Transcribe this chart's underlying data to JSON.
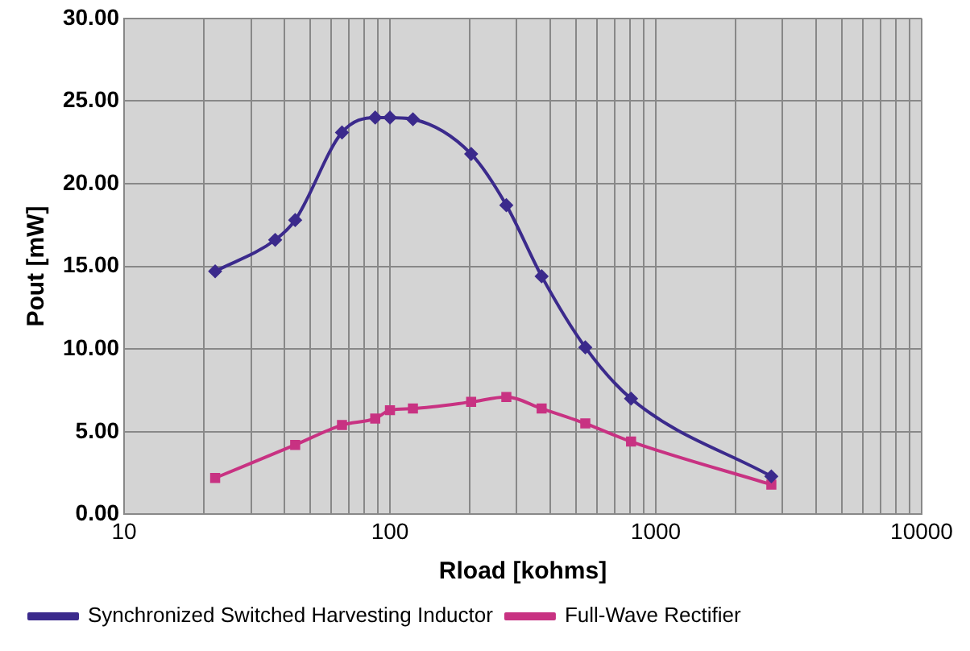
{
  "chart_data": {
    "type": "line",
    "xlabel": "Rload [kohms]",
    "ylabel": "Pout [mW]",
    "log": "x",
    "grid": true,
    "legend": "bottom",
    "line_style": "solid",
    "xlim": [
      10,
      10000
    ],
    "xticks": [
      10,
      {
        "value": 20,
        "label": null
      },
      {
        "value": 30,
        "label": null
      },
      {
        "value": 40,
        "label": null
      },
      {
        "value": 50,
        "label": null
      },
      {
        "value": 60,
        "label": null
      },
      {
        "value": 70,
        "label": null
      },
      {
        "value": 80,
        "label": null
      },
      {
        "value": 90,
        "label": null
      },
      100,
      {
        "value": 200,
        "label": null
      },
      {
        "value": 300,
        "label": null
      },
      {
        "value": 400,
        "label": null
      },
      {
        "value": 500,
        "label": null
      },
      {
        "value": 600,
        "label": null
      },
      {
        "value": 700,
        "label": null
      },
      {
        "value": 800,
        "label": null
      },
      {
        "value": 900,
        "label": null
      },
      1000,
      {
        "value": 2000,
        "label": null
      },
      {
        "value": 3000,
        "label": null
      },
      {
        "value": 4000,
        "label": null
      },
      {
        "value": 5000,
        "label": null
      },
      {
        "value": 6000,
        "label": null
      },
      {
        "value": 7000,
        "label": null
      },
      {
        "value": 8000,
        "label": null
      },
      {
        "value": 9000,
        "label": null
      },
      10000
    ],
    "ylim": [
      0,
      30
    ],
    "yticks": [
      {
        "value": 0,
        "label": "0.00"
      },
      {
        "value": 5,
        "label": "5.00"
      },
      {
        "value": 10,
        "label": "10.00"
      },
      {
        "value": 15,
        "label": "15.00"
      },
      {
        "value": 20,
        "label": "20.00"
      },
      {
        "value": 25,
        "label": "25.00"
      },
      {
        "value": 30,
        "label": "30.00"
      }
    ],
    "series": [
      {
        "name": "Synchronized Switched Harvesting Inductor",
        "color": "#3b2a8c",
        "marker": "diamond",
        "x": [
          22,
          37,
          44,
          66,
          88,
          100,
          122,
          202,
          274,
          372,
          543,
          807,
          2720
        ],
        "values": [
          14.7,
          16.6,
          17.8,
          23.1,
          24.0,
          24.0,
          23.9,
          21.8,
          18.7,
          14.4,
          10.1,
          7.0,
          2.3
        ]
      },
      {
        "name": "Full-Wave Rectifier",
        "color": "#c83282",
        "marker": "square",
        "x": [
          22,
          44,
          66,
          88,
          100,
          122,
          202,
          274,
          372,
          543,
          807,
          2720
        ],
        "values": [
          2.2,
          4.2,
          5.4,
          5.8,
          6.3,
          6.4,
          6.8,
          7.1,
          6.4,
          5.5,
          4.4,
          1.8
        ]
      }
    ]
  }
}
